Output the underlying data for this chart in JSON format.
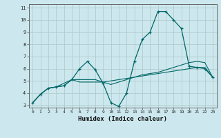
{
  "title": "",
  "xlabel": "Humidex (Indice chaleur)",
  "ylabel": "",
  "background_color": "#cce8ee",
  "grid_color": "#b0cccc",
  "line_color": "#006666",
  "xlim": [
    -0.5,
    23.5
  ],
  "ylim": [
    2.8,
    11.3
  ],
  "xticks": [
    0,
    1,
    2,
    3,
    4,
    5,
    6,
    7,
    8,
    9,
    10,
    11,
    12,
    13,
    14,
    15,
    16,
    17,
    18,
    19,
    20,
    21,
    22,
    23
  ],
  "yticks": [
    3,
    4,
    5,
    6,
    7,
    8,
    9,
    10,
    11
  ],
  "series": [
    [
      3.2,
      3.9,
      4.4,
      4.5,
      4.6,
      5.1,
      6.0,
      6.6,
      5.9,
      4.8,
      3.2,
      2.9,
      4.0,
      6.6,
      8.4,
      9.0,
      10.7,
      10.7,
      10.0,
      9.3,
      6.2,
      6.1,
      6.0,
      5.3
    ],
    [
      3.2,
      3.9,
      4.4,
      4.5,
      4.6,
      5.1,
      4.9,
      4.9,
      4.9,
      4.9,
      5.0,
      5.1,
      5.2,
      5.3,
      5.4,
      5.5,
      5.6,
      5.7,
      5.8,
      5.9,
      6.0,
      6.1,
      6.1,
      5.3
    ],
    [
      3.2,
      3.9,
      4.4,
      4.5,
      4.8,
      5.1,
      5.1,
      5.1,
      5.1,
      4.9,
      4.7,
      4.9,
      5.1,
      5.3,
      5.5,
      5.6,
      5.7,
      5.9,
      6.1,
      6.3,
      6.5,
      6.6,
      6.5,
      5.3
    ]
  ]
}
